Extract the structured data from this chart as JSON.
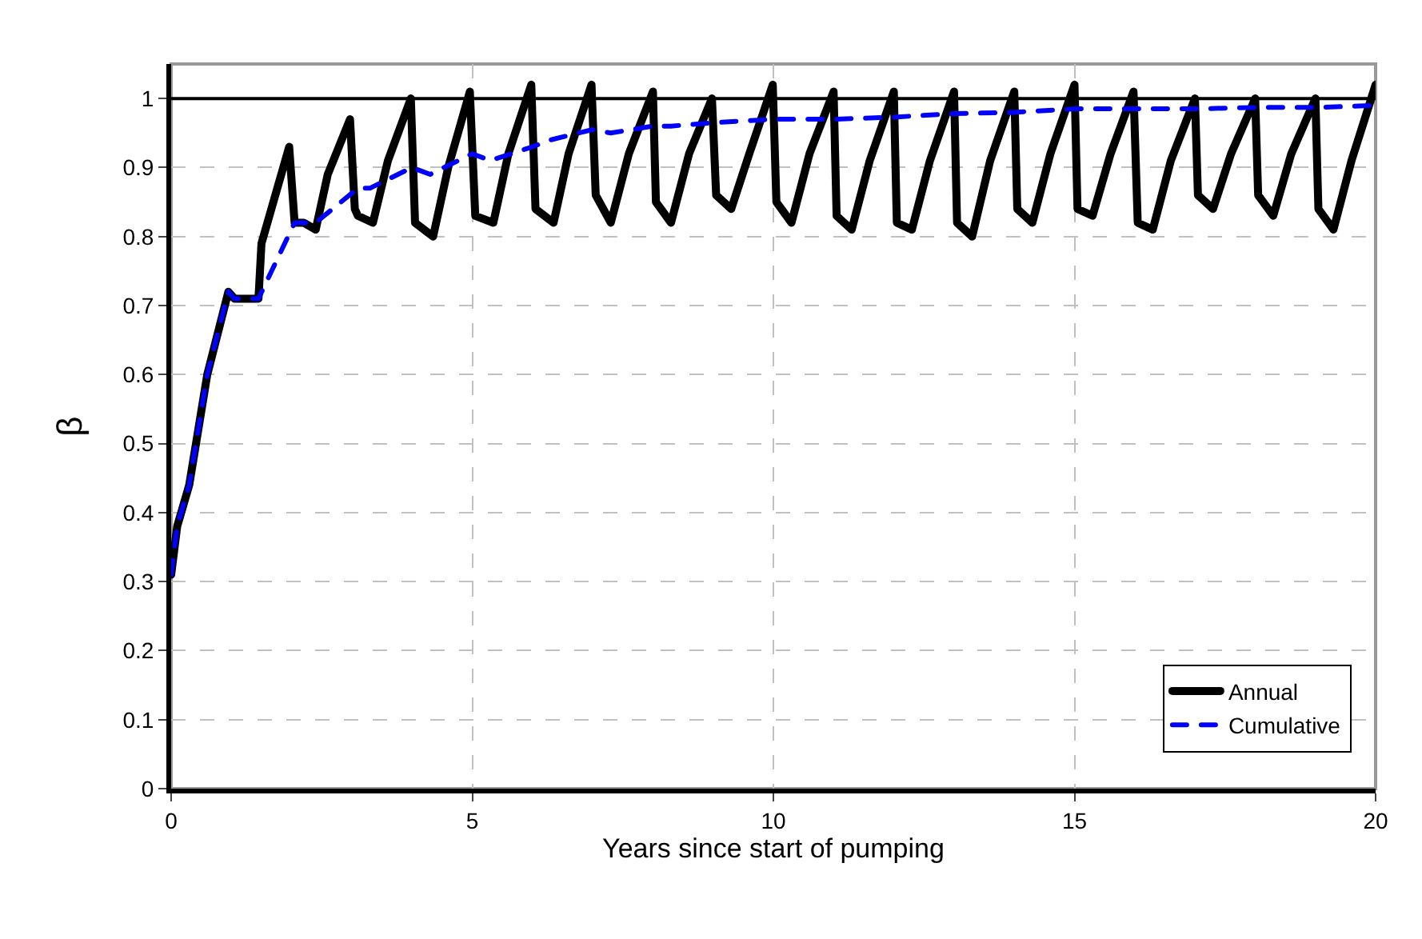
{
  "chart_data": {
    "type": "line",
    "xlabel": "Years since start of pumping",
    "ylabel": "β",
    "xlim": [
      0,
      20
    ],
    "xticks": [
      0,
      5,
      10,
      15,
      20
    ],
    "ylim": [
      0,
      1.05
    ],
    "yticks": [
      0,
      0.1,
      0.2,
      0.3,
      0.4,
      0.5,
      0.6,
      0.7,
      0.8,
      0.9,
      1
    ],
    "grid": true,
    "legend": "bottom right",
    "marker": "none",
    "ref_lines": [
      {
        "axis": "y",
        "value": 1,
        "color": "#000000",
        "line_style": "solid"
      }
    ],
    "series": [
      {
        "name": "Annual",
        "color": "#000000",
        "line_style": "solid",
        "x": [
          0,
          0.1,
          0.3,
          0.6,
          0.95,
          1.05,
          1.45,
          1.5,
          1.96,
          2.05,
          2.2,
          2.4,
          2.6,
          2.97,
          3.05,
          3.1,
          3.35,
          3.6,
          3.98,
          4.05,
          4.35,
          4.6,
          4.96,
          5.05,
          5.35,
          5.6,
          5.98,
          6.05,
          6.35,
          6.6,
          6.98,
          7.05,
          7.3,
          7.6,
          8.0,
          8.05,
          8.3,
          8.6,
          8.98,
          9.05,
          9.3,
          9.6,
          9.99,
          10.05,
          10.3,
          10.6,
          11.0,
          11.05,
          11.3,
          11.6,
          12.0,
          12.05,
          12.3,
          12.6,
          13.0,
          13.05,
          13.3,
          13.6,
          14.0,
          14.05,
          14.3,
          14.6,
          15.0,
          15.05,
          15.3,
          15.6,
          15.98,
          16.05,
          16.3,
          16.6,
          17.0,
          17.05,
          17.3,
          17.6,
          18.0,
          18.05,
          18.3,
          18.6,
          19.0,
          19.05,
          19.3,
          19.6,
          20.0
        ],
        "values": [
          0.31,
          0.38,
          0.44,
          0.6,
          0.72,
          0.71,
          0.71,
          0.79,
          0.93,
          0.82,
          0.82,
          0.81,
          0.89,
          0.97,
          0.84,
          0.83,
          0.82,
          0.91,
          1.0,
          0.82,
          0.8,
          0.9,
          1.01,
          0.83,
          0.82,
          0.92,
          1.02,
          0.84,
          0.82,
          0.92,
          1.02,
          0.86,
          0.82,
          0.92,
          1.01,
          0.85,
          0.82,
          0.92,
          1.0,
          0.86,
          0.84,
          0.92,
          1.02,
          0.85,
          0.82,
          0.92,
          1.01,
          0.83,
          0.81,
          0.91,
          1.01,
          0.82,
          0.81,
          0.91,
          1.01,
          0.82,
          0.8,
          0.91,
          1.01,
          0.84,
          0.82,
          0.92,
          1.02,
          0.84,
          0.83,
          0.92,
          1.01,
          0.82,
          0.81,
          0.91,
          1.0,
          0.86,
          0.84,
          0.92,
          1.0,
          0.86,
          0.83,
          0.92,
          1.0,
          0.84,
          0.81,
          0.91,
          1.02
        ]
      },
      {
        "name": "Cumulative",
        "color": "#0000ff",
        "line_style": "dashed",
        "x": [
          0,
          0.1,
          0.3,
          0.6,
          0.95,
          1.05,
          1.45,
          2.05,
          2.4,
          3.1,
          3.3,
          4.0,
          4.3,
          5.0,
          5.3,
          6.0,
          6.3,
          7.0,
          7.3,
          8.0,
          8.3,
          9.0,
          10.0,
          11.0,
          12.0,
          13.0,
          14.0,
          15.0,
          16.0,
          17.0,
          18.0,
          19.0,
          20.0
        ],
        "values": [
          0.31,
          0.38,
          0.44,
          0.6,
          0.72,
          0.71,
          0.71,
          0.82,
          0.82,
          0.87,
          0.87,
          0.9,
          0.89,
          0.92,
          0.91,
          0.93,
          0.94,
          0.955,
          0.95,
          0.96,
          0.96,
          0.965,
          0.97,
          0.97,
          0.973,
          0.978,
          0.98,
          0.985,
          0.985,
          0.985,
          0.987,
          0.987,
          0.99
        ]
      }
    ]
  }
}
